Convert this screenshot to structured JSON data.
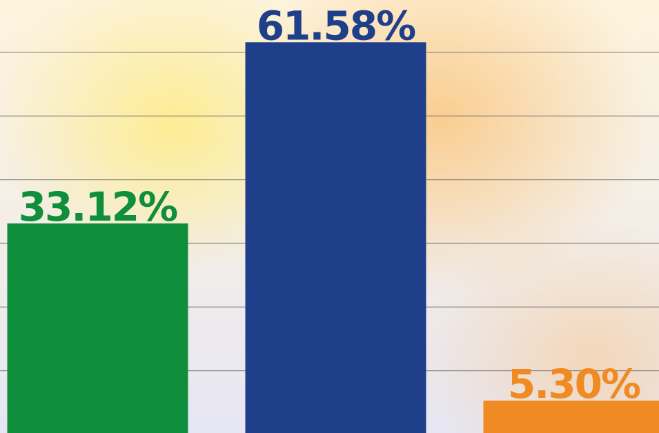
{
  "chart_data": {
    "type": "bar",
    "categories": [
      null,
      null,
      null
    ],
    "values": [
      33.12,
      61.58,
      5.3
    ],
    "value_labels": [
      "33.12%",
      "61.58%",
      "5.30%"
    ],
    "colors": [
      "#0f8e3b",
      "#203f8a",
      "#f08a22"
    ],
    "ylim": [
      0,
      68
    ],
    "yticks": [
      10,
      20,
      30,
      40,
      50,
      60
    ],
    "grid": true
  }
}
